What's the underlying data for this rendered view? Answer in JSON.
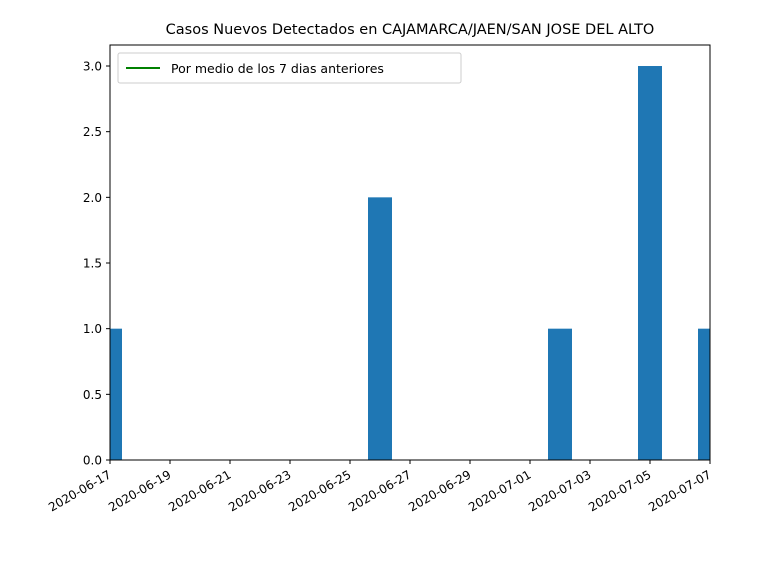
{
  "chart_data": {
    "type": "bar",
    "title": "Casos Nuevos Detectados en CAJAMARCA/JAEN/SAN JOSE DEL ALTO",
    "xlabel": "",
    "ylabel": "",
    "x_range": [
      "2020-06-17",
      "2020-07-07"
    ],
    "ylim": [
      0,
      3.16
    ],
    "x_ticks": [
      "2020-06-17",
      "2020-06-19",
      "2020-06-21",
      "2020-06-23",
      "2020-06-25",
      "2020-06-27",
      "2020-06-29",
      "2020-07-01",
      "2020-07-03",
      "2020-07-05",
      "2020-07-07"
    ],
    "y_ticks": [
      "0.0",
      "0.5",
      "1.0",
      "1.5",
      "2.0",
      "2.5",
      "3.0"
    ],
    "bars": [
      {
        "date": "2020-06-17",
        "value": 1
      },
      {
        "date": "2020-06-26",
        "value": 2
      },
      {
        "date": "2020-07-02",
        "value": 1
      },
      {
        "date": "2020-07-05",
        "value": 3
      },
      {
        "date": "2020-07-07",
        "value": 1
      }
    ],
    "bar_color": "#1f77b4",
    "series": [
      {
        "name": "Por medio de los 7 dias anteriores",
        "color": "#008000",
        "values": []
      }
    ],
    "legend": {
      "placement": "upper-left"
    },
    "grid": false
  }
}
